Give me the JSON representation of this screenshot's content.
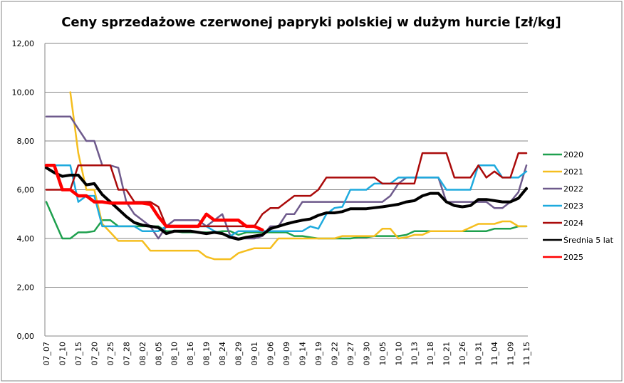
{
  "chart_data": {
    "type": "line",
    "title": "Ceny sprzedażowe czerwonej papryki polskiej w dużym hurcie [zł/kg]",
    "xlabel": "",
    "ylabel": "",
    "ylim": [
      0,
      12
    ],
    "yticks": [
      "0,00",
      "2,00",
      "4,00",
      "6,00",
      "8,00",
      "10,00",
      "12,00"
    ],
    "grid": true,
    "legend": "right",
    "categories": [
      "07_07",
      "",
      "07_10",
      "",
      "07_15",
      "",
      "07_20",
      "",
      "07_25",
      "",
      "07_28",
      "",
      "08_02",
      "",
      "08_05",
      "",
      "08_10",
      "",
      "08_16",
      "",
      "08_19",
      "",
      "08_24",
      "",
      "08_29",
      "",
      "09_01",
      "",
      "09_06",
      "",
      "09_09",
      "",
      "09_14",
      "",
      "09_19",
      "",
      "09_22",
      "",
      "09_27",
      "",
      "09_30",
      "",
      "10_05",
      "",
      "10_10",
      "",
      "10_13",
      "",
      "10_18",
      "",
      "10_21",
      "",
      "10_26",
      "",
      "10_31",
      "",
      "11_04",
      "",
      "11_09",
      "",
      "11_15"
    ],
    "series": [
      {
        "name": "2020",
        "color": "#1ea04e",
        "width": 2.5,
        "values": [
          5.5,
          4.75,
          4.0,
          4.0,
          4.25,
          4.25,
          4.3,
          4.75,
          4.75,
          4.5,
          4.5,
          4.5,
          4.5,
          4.5,
          4.5,
          4.3,
          4.3,
          4.25,
          4.25,
          4.25,
          4.25,
          4.25,
          4.3,
          4.3,
          4.15,
          4.25,
          4.25,
          4.25,
          4.25,
          4.25,
          4.25,
          4.1,
          4.1,
          4.05,
          4.0,
          4.0,
          4.0,
          4.0,
          4.0,
          4.05,
          4.05,
          4.1,
          4.1,
          4.1,
          4.1,
          4.15,
          4.3,
          4.3,
          4.3,
          4.3,
          4.3,
          4.3,
          4.3,
          4.3,
          4.3,
          4.3,
          4.4,
          4.4,
          4.4,
          4.5,
          4.5
        ]
      },
      {
        "name": "2021",
        "color": "#f5be1e",
        "width": 2.5,
        "values": [
          null,
          null,
          null,
          10.0,
          7.5,
          6.0,
          6.0,
          4.6,
          4.25,
          3.9,
          3.9,
          3.9,
          3.9,
          3.5,
          3.5,
          3.5,
          3.5,
          3.5,
          3.5,
          3.5,
          3.25,
          3.15,
          3.15,
          3.15,
          3.4,
          3.5,
          3.6,
          3.6,
          3.6,
          4.0,
          4.0,
          4.0,
          4.0,
          4.0,
          4.0,
          4.0,
          4.0,
          4.1,
          4.1,
          4.1,
          4.1,
          4.1,
          4.4,
          4.4,
          4.0,
          4.05,
          4.15,
          4.15,
          4.3,
          4.3,
          4.3,
          4.3,
          4.3,
          4.45,
          4.6,
          4.6,
          4.6,
          4.7,
          4.7,
          4.5,
          4.5
        ]
      },
      {
        "name": "2022",
        "color": "#6e5a8c",
        "width": 2.5,
        "values": [
          9.0,
          9.0,
          9.0,
          9.0,
          8.5,
          8.0,
          8.0,
          7.0,
          7.0,
          6.9,
          5.5,
          5.0,
          4.75,
          4.5,
          4.0,
          4.5,
          4.75,
          4.75,
          4.75,
          4.75,
          4.5,
          4.75,
          5.0,
          4.1,
          4.0,
          4.0,
          4.0,
          4.1,
          4.5,
          4.5,
          5.0,
          5.0,
          5.5,
          5.5,
          5.5,
          5.5,
          5.5,
          5.5,
          5.5,
          5.5,
          5.5,
          5.5,
          5.5,
          5.75,
          6.25,
          6.5,
          6.5,
          6.5,
          6.5,
          6.5,
          5.5,
          5.5,
          5.5,
          5.5,
          5.5,
          5.5,
          5.25,
          5.25,
          5.5,
          5.9,
          7.0
        ]
      },
      {
        "name": "2023",
        "color": "#1eaade",
        "width": 2.5,
        "values": [
          7.0,
          7.0,
          7.0,
          7.0,
          5.5,
          5.75,
          5.75,
          4.5,
          4.5,
          4.5,
          4.5,
          4.5,
          4.3,
          4.3,
          4.3,
          4.5,
          4.5,
          4.5,
          4.5,
          4.5,
          4.5,
          4.3,
          4.2,
          4.1,
          4.3,
          4.3,
          4.3,
          4.3,
          4.3,
          4.3,
          4.3,
          4.3,
          4.3,
          4.5,
          4.4,
          5.0,
          5.25,
          5.3,
          6.0,
          6.0,
          6.0,
          6.25,
          6.25,
          6.25,
          6.5,
          6.5,
          6.5,
          6.5,
          6.5,
          6.5,
          6.0,
          6.0,
          6.0,
          6.0,
          7.0,
          7.0,
          7.0,
          6.5,
          6.5,
          6.5,
          6.75
        ]
      },
      {
        "name": "2024",
        "color": "#aa0a0a",
        "width": 2.5,
        "values": [
          6.0,
          6.0,
          6.0,
          6.0,
          7.0,
          7.0,
          7.0,
          7.0,
          7.0,
          6.0,
          6.0,
          5.5,
          5.5,
          5.5,
          5.3,
          4.5,
          4.5,
          4.5,
          4.5,
          4.5,
          4.5,
          4.5,
          4.5,
          4.5,
          4.5,
          4.5,
          4.5,
          5.0,
          5.25,
          5.25,
          5.5,
          5.75,
          5.75,
          5.75,
          6.0,
          6.5,
          6.5,
          6.5,
          6.5,
          6.5,
          6.5,
          6.5,
          6.25,
          6.25,
          6.25,
          6.25,
          6.25,
          7.5,
          7.5,
          7.5,
          7.5,
          6.5,
          6.5,
          6.5,
          7.0,
          6.5,
          6.75,
          6.5,
          6.5,
          7.5,
          7.5
        ]
      },
      {
        "name": "Średnia 5 lat",
        "color": "#000000",
        "width": 4,
        "values": [
          6.9,
          6.7,
          6.55,
          6.6,
          6.6,
          6.2,
          6.25,
          5.8,
          5.5,
          5.2,
          4.9,
          4.65,
          4.55,
          4.5,
          4.45,
          4.2,
          4.3,
          4.3,
          4.3,
          4.25,
          4.2,
          4.25,
          4.2,
          4.05,
          3.97,
          4.05,
          4.1,
          4.15,
          4.4,
          4.5,
          4.6,
          4.68,
          4.75,
          4.8,
          4.95,
          5.05,
          5.05,
          5.1,
          5.22,
          5.22,
          5.22,
          5.26,
          5.3,
          5.35,
          5.4,
          5.5,
          5.55,
          5.75,
          5.85,
          5.85,
          5.5,
          5.35,
          5.3,
          5.35,
          5.6,
          5.6,
          5.55,
          5.5,
          5.5,
          5.65,
          6.05
        ]
      },
      {
        "name": "2025",
        "color": "#ff0000",
        "width": 4.5,
        "values": [
          7.0,
          7.0,
          6.0,
          6.0,
          5.75,
          5.75,
          5.5,
          5.5,
          5.45,
          5.45,
          5.45,
          5.45,
          5.45,
          5.4,
          4.9,
          4.5,
          4.5,
          4.5,
          4.5,
          4.5,
          5.0,
          4.75,
          4.75,
          4.75,
          4.75,
          4.5,
          4.5,
          4.35,
          null,
          null,
          null,
          null,
          null,
          null,
          null,
          null,
          null,
          null,
          null,
          null,
          null,
          null,
          null,
          null,
          null,
          null,
          null,
          null,
          null,
          null,
          null,
          null,
          null,
          null,
          null,
          null,
          null,
          null,
          null,
          null,
          null
        ]
      }
    ]
  }
}
